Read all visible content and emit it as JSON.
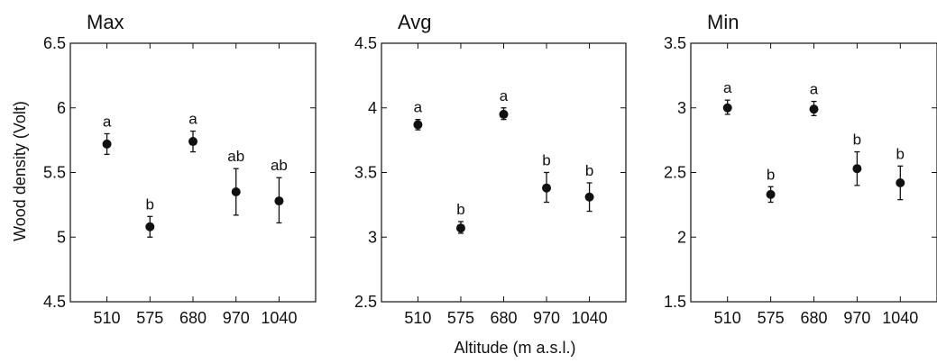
{
  "figure": {
    "ylabel": "Wood density (Volt)",
    "xlabel": "Altitude (m a.s.l.)"
  },
  "chart_data": [
    {
      "type": "scatter",
      "title": "Max",
      "categories": [
        "510",
        "575",
        "680",
        "970",
        "1040"
      ],
      "values": [
        5.72,
        5.08,
        5.74,
        5.35,
        5.28
      ],
      "error_low": [
        5.64,
        5.0,
        5.66,
        5.17,
        5.11
      ],
      "error_high": [
        5.8,
        5.16,
        5.82,
        5.53,
        5.46
      ],
      "significance_labels": [
        "a",
        "b",
        "a",
        "ab",
        "ab"
      ],
      "ylim": [
        4.5,
        6.5
      ],
      "yticks": [
        4.5,
        5,
        5.5,
        6,
        6.5
      ],
      "ytick_labels": [
        "4.5",
        "5",
        "5.5",
        "6",
        "6.5"
      ],
      "grid": false,
      "marker_color": "#111111"
    },
    {
      "type": "scatter",
      "title": "Avg",
      "categories": [
        "510",
        "575",
        "680",
        "970",
        "1040"
      ],
      "values": [
        3.87,
        3.07,
        3.95,
        3.38,
        3.31
      ],
      "error_low": [
        3.83,
        3.03,
        3.91,
        3.27,
        3.2
      ],
      "error_high": [
        3.91,
        3.12,
        4.0,
        3.5,
        3.42
      ],
      "significance_labels": [
        "a",
        "b",
        "a",
        "b",
        "b"
      ],
      "ylim": [
        2.5,
        4.5
      ],
      "yticks": [
        2.5,
        3,
        3.5,
        4,
        4.5
      ],
      "ytick_labels": [
        "2.5",
        "3",
        "3.5",
        "4",
        "4.5"
      ],
      "grid": false,
      "marker_color": "#111111"
    },
    {
      "type": "scatter",
      "title": "Min",
      "categories": [
        "510",
        "575",
        "680",
        "970",
        "1040"
      ],
      "values": [
        3.0,
        2.33,
        2.99,
        2.53,
        2.42
      ],
      "error_low": [
        2.95,
        2.27,
        2.94,
        2.4,
        2.29
      ],
      "error_high": [
        3.06,
        2.39,
        3.05,
        2.66,
        2.55
      ],
      "significance_labels": [
        "a",
        "b",
        "a",
        "b",
        "b"
      ],
      "ylim": [
        1.5,
        3.5
      ],
      "yticks": [
        1.5,
        2,
        2.5,
        3,
        3.5
      ],
      "ytick_labels": [
        "1.5",
        "2",
        "2.5",
        "3",
        "3.5"
      ],
      "grid": false,
      "marker_color": "#111111"
    }
  ]
}
